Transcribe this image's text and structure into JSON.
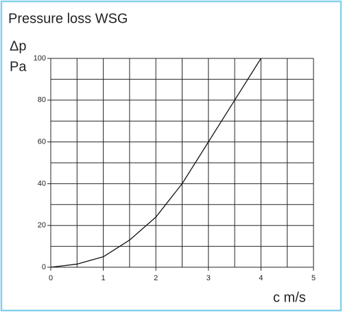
{
  "chart_data": {
    "type": "line",
    "title": "Pressure loss WSG",
    "y_label": "Δp",
    "y_unit": "Pa",
    "x_label": "c m/s",
    "x": [
      0,
      0.5,
      1,
      1.5,
      2,
      2.5,
      3,
      3.5,
      4
    ],
    "series": [
      {
        "color": "#111111",
        "values": [
          0,
          1.5,
          5,
          13,
          24,
          40,
          60,
          80,
          100
        ]
      }
    ],
    "xlim": [
      0,
      5
    ],
    "ylim": [
      0,
      100
    ],
    "xticks": [
      0,
      1,
      2,
      3,
      4,
      5
    ],
    "yticks": [
      0,
      20,
      40,
      60,
      80,
      100
    ],
    "xgrid": [
      0,
      0.5,
      1,
      1.5,
      2,
      2.5,
      3,
      3.5,
      4,
      4.5,
      5
    ],
    "ygrid": [
      0,
      10,
      20,
      30,
      40,
      50,
      60,
      70,
      80,
      90,
      100
    ],
    "grid": true,
    "frame_color": "#86d0ea"
  }
}
